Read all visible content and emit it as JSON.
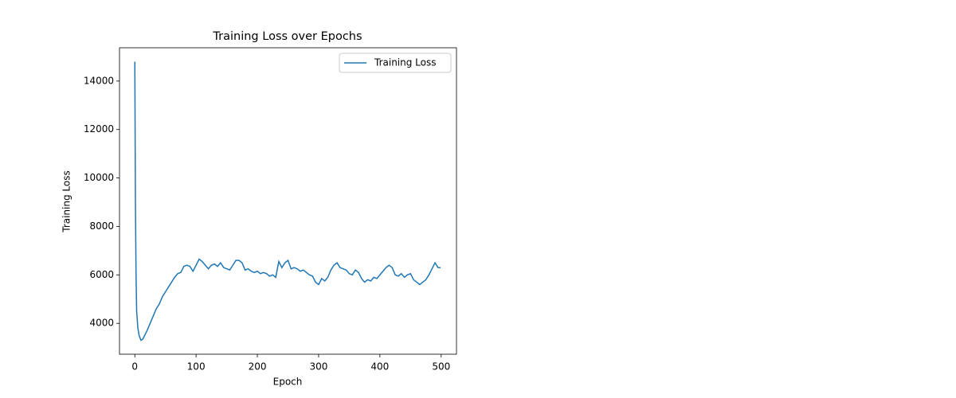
{
  "chart_data": {
    "type": "line",
    "title": "Training Loss over Epochs",
    "x_label": "Epoch",
    "y_label": "Training Loss",
    "x": [
      0,
      1,
      2,
      3,
      5,
      7,
      10,
      13,
      16,
      20,
      25,
      30,
      35,
      40,
      45,
      50,
      55,
      60,
      65,
      70,
      75,
      80,
      85,
      90,
      95,
      100,
      105,
      110,
      115,
      120,
      125,
      130,
      135,
      140,
      145,
      150,
      155,
      160,
      165,
      170,
      175,
      180,
      185,
      190,
      195,
      200,
      205,
      210,
      215,
      220,
      225,
      230,
      235,
      240,
      245,
      250,
      255,
      260,
      265,
      270,
      275,
      280,
      285,
      290,
      295,
      300,
      305,
      310,
      315,
      320,
      325,
      330,
      335,
      340,
      345,
      350,
      355,
      360,
      365,
      370,
      375,
      380,
      385,
      390,
      395,
      400,
      405,
      410,
      415,
      420,
      425,
      430,
      435,
      440,
      445,
      450,
      455,
      460,
      465,
      470,
      475,
      480,
      485,
      490,
      495,
      499
    ],
    "series": [
      {
        "name": "Training Loss",
        "color": "#1f77b4",
        "values": [
          14800,
          9000,
          6000,
          4500,
          3800,
          3500,
          3300,
          3350,
          3500,
          3700,
          4000,
          4300,
          4600,
          4800,
          5100,
          5300,
          5500,
          5700,
          5900,
          6050,
          6100,
          6350,
          6400,
          6350,
          6150,
          6400,
          6650,
          6550,
          6400,
          6250,
          6400,
          6450,
          6350,
          6500,
          6300,
          6250,
          6200,
          6400,
          6600,
          6600,
          6500,
          6200,
          6250,
          6150,
          6100,
          6150,
          6050,
          6100,
          6050,
          5950,
          6000,
          5900,
          6550,
          6300,
          6500,
          6600,
          6250,
          6300,
          6250,
          6150,
          6200,
          6100,
          6000,
          5950,
          5700,
          5600,
          5850,
          5750,
          5900,
          6200,
          6400,
          6500,
          6300,
          6250,
          6200,
          6050,
          6000,
          6200,
          6100,
          5850,
          5700,
          5800,
          5750,
          5900,
          5850,
          6000,
          6150,
          6300,
          6400,
          6300,
          6000,
          5950,
          6050,
          5900,
          6000,
          6050,
          5800,
          5700,
          5600,
          5700,
          5800,
          6000,
          6250,
          6500,
          6300,
          6300
        ]
      }
    ],
    "xlim": [
      -25,
      525
    ],
    "ylim": [
      2725,
      15375
    ],
    "xticks": [
      0,
      100,
      200,
      300,
      400,
      500
    ],
    "yticks": [
      4000,
      6000,
      8000,
      10000,
      12000,
      14000
    ],
    "legend": "upper right",
    "grid": false
  }
}
